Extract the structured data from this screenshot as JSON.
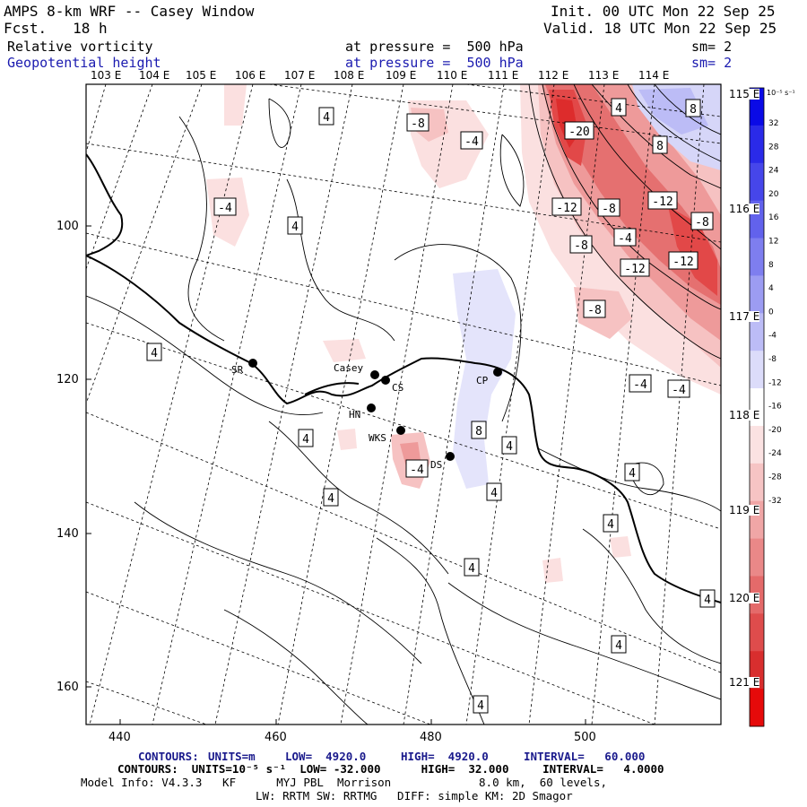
{
  "header": {
    "title": "AMPS 8-km WRF -- Casey Window",
    "fcst": "Fcst.   18 h",
    "init": "Init. 00 UTC Mon 22 Sep 25",
    "valid": "Valid. 18 UTC Mon 22 Sep 25",
    "field1_name": "Relative vorticity",
    "field1_level": "at pressure =  500 hPa",
    "field1_sm": "sm= 2",
    "field2_name": "Geopotential height",
    "field2_level": "at pressure =  500 hPa",
    "field2_sm": "sm= 2"
  },
  "axes": {
    "lon_top": [
      "103 E",
      "104 E",
      "105 E",
      "106 E",
      "107 E",
      "108 E",
      "109 E",
      "110 E",
      "111 E",
      "112 E",
      "113 E",
      "114 E"
    ],
    "lon_right": [
      "115 E",
      "116 E",
      "117 E",
      "118 E",
      "119 E",
      "120 E",
      "121 E"
    ],
    "x_ticks": [
      "440",
      "460",
      "480",
      "500"
    ],
    "y_ticks": [
      "100",
      "120",
      "140",
      "160"
    ]
  },
  "stations": [
    {
      "label": "SR"
    },
    {
      "label": "Casey"
    },
    {
      "label": "CS"
    },
    {
      "label": "CP"
    },
    {
      "label": "HN"
    },
    {
      "label": "WKS"
    },
    {
      "label": "DS"
    }
  ],
  "contour_labels": [
    "4",
    "-8",
    "-4",
    "-20",
    "4",
    "8",
    "8",
    "-4",
    "4",
    "-12",
    "-8",
    "-12",
    "-4",
    "-8",
    "-8",
    "-12",
    "-12",
    "-8",
    "4",
    "4",
    "-4",
    "-4",
    "8",
    "4",
    "4",
    "-4",
    "4",
    "4",
    "4",
    "4",
    "4",
    "4",
    "4"
  ],
  "colorbar": {
    "unit": "10⁻⁵ s⁻¹",
    "labels": [
      "32",
      "28",
      "24",
      "20",
      "16",
      "12",
      "8",
      "4",
      "0",
      "-4",
      "-8",
      "-12",
      "-16",
      "-20",
      "-24",
      "-28",
      "-32"
    ],
    "colors": [
      "#0a0ae6",
      "#2a2ae8",
      "#4646ea",
      "#6262ec",
      "#7e7eef",
      "#9c9cf2",
      "#bcbcf6",
      "#dcdcfa",
      "#ffffff",
      "#fbe2e2",
      "#f6c4c4",
      "#f0a6a6",
      "#ea8888",
      "#e46a6a",
      "#de4c4c",
      "#d82e2e",
      "#e60a0a"
    ]
  },
  "footer": {
    "contours1_label": "CONTOURS:",
    "contours1_units": "UNITS=m",
    "contours1_low": "LOW=  4920.0",
    "contours1_high": "HIGH=  4920.0",
    "contours1_interval": "INTERVAL=   60.000",
    "contours2_text": "CONTOURS:  UNITS=10⁻⁵ s⁻¹  LOW= -32.000      HIGH=  32.000     INTERVAL=   4.0000",
    "model_info": "Model Info: V4.3.3   KF      MYJ PBL  Morrison             8.0 km,  60 levels,",
    "physics": "LW: RRTM SW: RRTMG   DIFF: simple KM: 2D Smagor"
  }
}
